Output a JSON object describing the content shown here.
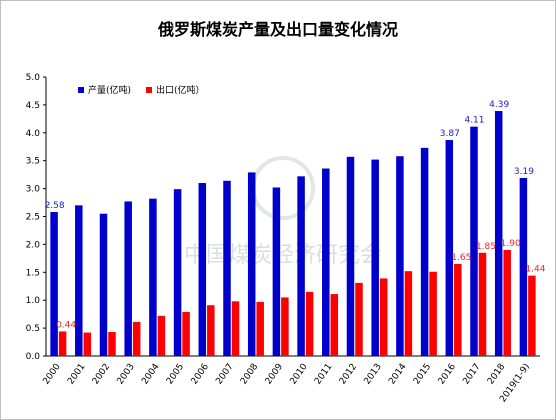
{
  "chart_data": {
    "type": "bar",
    "title": "俄罗斯煤炭产量及出口量变化情况",
    "categories": [
      "2000",
      "2001",
      "2002",
      "2003",
      "2004",
      "2005",
      "2006",
      "2007",
      "2008",
      "2009",
      "2010",
      "2011",
      "2012",
      "2013",
      "2014",
      "2015",
      "2016",
      "2017",
      "2018",
      "2019(1-9)"
    ],
    "series": [
      {
        "name": "产量(亿吨)",
        "color": "#0000cc",
        "values": [
          2.58,
          2.7,
          2.55,
          2.77,
          2.82,
          2.99,
          3.1,
          3.14,
          3.29,
          3.02,
          3.22,
          3.36,
          3.57,
          3.52,
          3.58,
          3.73,
          3.87,
          4.11,
          4.39,
          3.19
        ]
      },
      {
        "name": "出口(亿吨）",
        "color": "#ff0000",
        "values": [
          0.44,
          0.42,
          0.43,
          0.61,
          0.72,
          0.79,
          0.91,
          0.98,
          0.97,
          1.05,
          1.15,
          1.11,
          1.31,
          1.39,
          1.52,
          1.51,
          1.65,
          1.85,
          1.9,
          1.44
        ]
      }
    ],
    "data_labels": {
      "blue": [
        {
          "index": 0,
          "text": "2.58"
        },
        {
          "index": 16,
          "text": "3.87"
        },
        {
          "index": 17,
          "text": "4.11"
        },
        {
          "index": 18,
          "text": "4.39"
        },
        {
          "index": 19,
          "text": "3.19"
        }
      ],
      "red": [
        {
          "index": 0,
          "text": "0.44"
        },
        {
          "index": 16,
          "text": "1.65"
        },
        {
          "index": 17,
          "text": "1.85"
        },
        {
          "index": 18,
          "text": "1.90"
        },
        {
          "index": 19,
          "text": "1.44"
        }
      ]
    },
    "y_ticks": [
      "0.0",
      "0.5",
      "1.0",
      "1.5",
      "2.0",
      "2.5",
      "3.0",
      "3.5",
      "4.0",
      "4.5",
      "5.0"
    ],
    "ylim": [
      0,
      5
    ],
    "grid": false,
    "legend_position": "top-left"
  },
  "watermark": "中国煤炭经济研究会"
}
